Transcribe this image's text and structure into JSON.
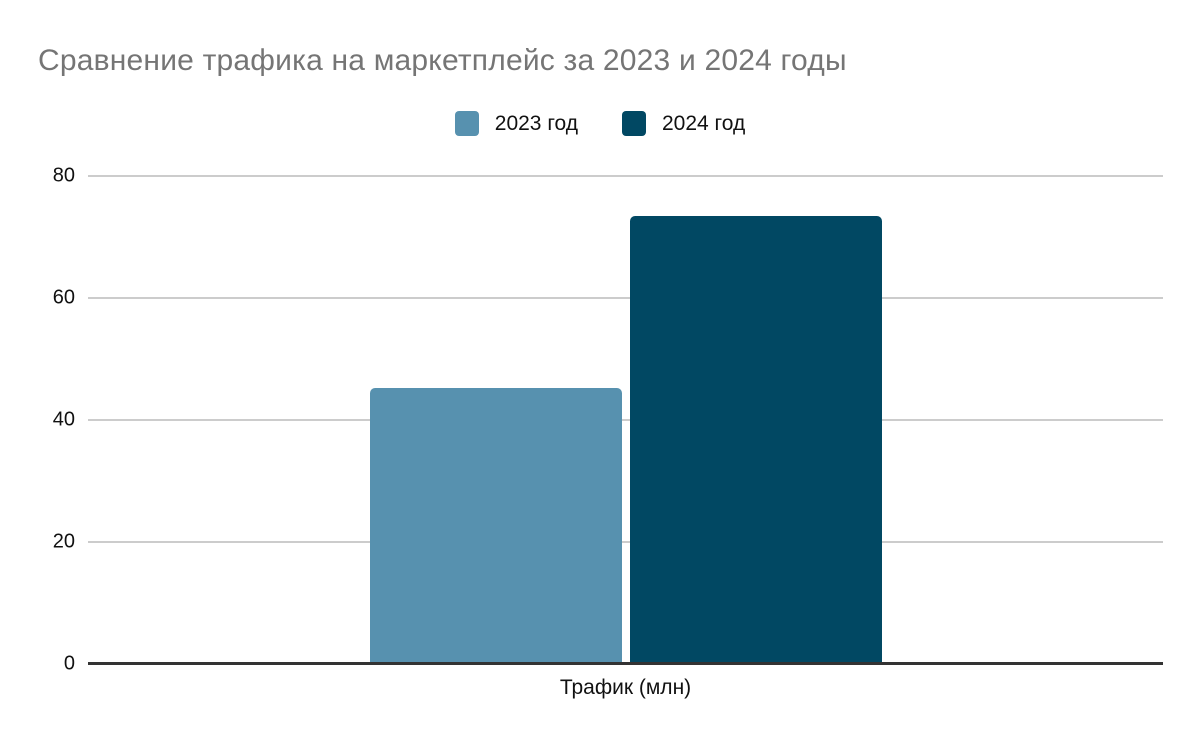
{
  "colors": {
    "background": "#ffffff",
    "title_text": "#757575",
    "axis_text": "#111111",
    "gridline": "#cccccc",
    "baseline": "#333333",
    "series_2023": "#5791af",
    "series_2024": "#014863"
  },
  "chart_data": {
    "type": "bar",
    "title": "Сравнение трафика на маркетплейс за 2023 и 2024 годы",
    "categories": [
      "Трафик (млн)"
    ],
    "series": [
      {
        "name": "2023 год",
        "values": [
          45.2
        ],
        "color": "#5791af"
      },
      {
        "name": "2024 год",
        "values": [
          73.5
        ],
        "color": "#014863"
      }
    ],
    "xlabel": "Трафик (млн)",
    "ylabel": "",
    "ylim": [
      0,
      80
    ],
    "yticks": [
      0,
      20,
      40,
      60,
      80
    ],
    "grid": true,
    "legend_position": "top-center"
  }
}
